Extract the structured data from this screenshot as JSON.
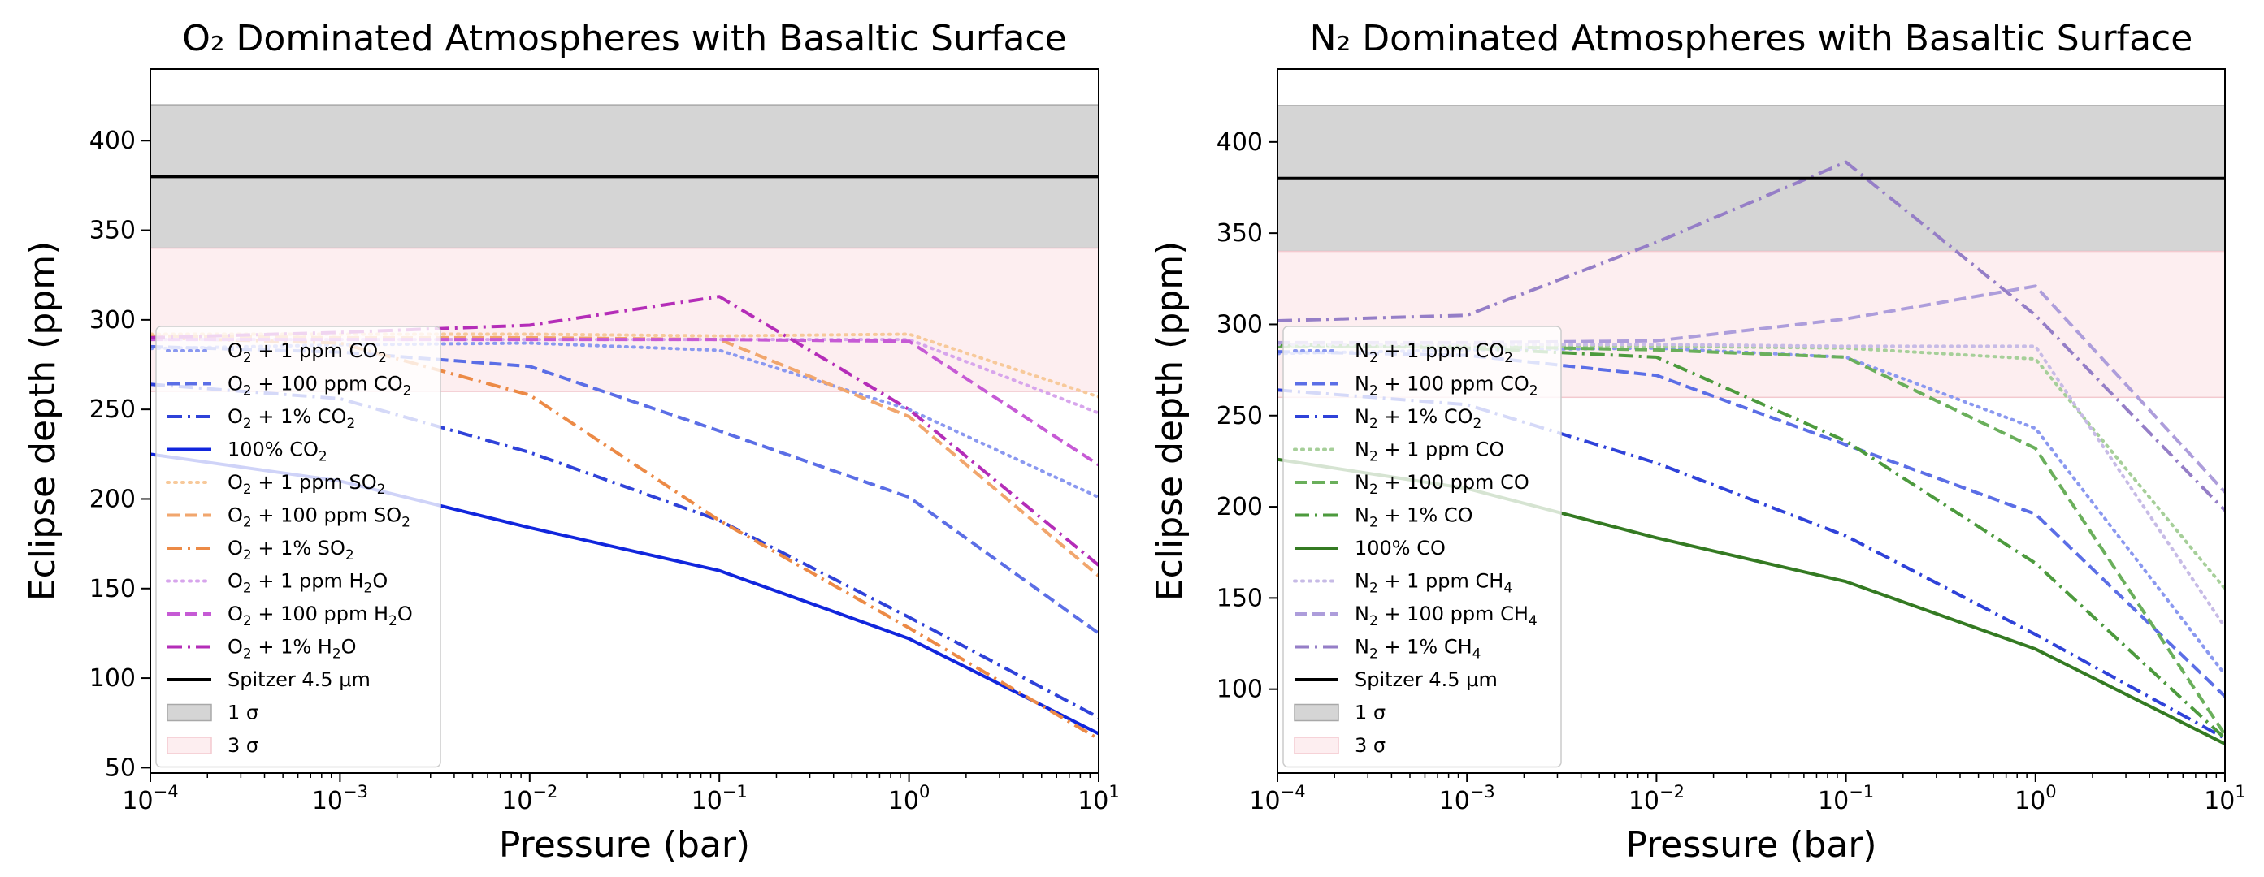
{
  "chart_data": [
    {
      "type": "line",
      "title": "O₂ Dominated Atmospheres with Basaltic Surface",
      "xlabel": "Pressure (bar)",
      "ylabel": "Eclipse depth (ppm)",
      "xscale": "log",
      "xlim": [
        0.0001,
        10
      ],
      "ylim": [
        47,
        440
      ],
      "xticks": [
        {
          "base": "10",
          "exp": "−4",
          "value": 0.0001
        },
        {
          "base": "10",
          "exp": "−3",
          "value": 0.001
        },
        {
          "base": "10",
          "exp": "−2",
          "value": 0.01
        },
        {
          "base": "10",
          "exp": "−1",
          "value": 0.1
        },
        {
          "base": "10",
          "exp": "0",
          "value": 1
        },
        {
          "base": "10",
          "exp": "1",
          "value": 10
        }
      ],
      "yticks": [
        "50",
        "100",
        "150",
        "200",
        "250",
        "300",
        "350",
        "400"
      ],
      "legend_position": "lower-left",
      "x": [
        0.0001,
        0.001,
        0.01,
        0.1,
        1,
        10
      ],
      "spitzer": {
        "value": 380,
        "label": "Spitzer 4.5 μm",
        "color": "#000000"
      },
      "bands": [
        {
          "name": "1 σ",
          "range": [
            340,
            420
          ],
          "color": "#d5d5d5",
          "edge": "#a8a8a8"
        },
        {
          "name": "3 σ",
          "range": [
            260,
            340
          ],
          "color": "#fdeef0",
          "edge": "#f3c9cf"
        }
      ],
      "series": [
        {
          "name": "O₂ + 1 ppm CO₂",
          "main": "O",
          "sub": "2",
          "rest": " + 1 ppm CO",
          "sub2": "2",
          "color": "#8a98f0",
          "dash": "dot",
          "values": [
            284,
            286,
            287,
            283,
            250,
            201
          ]
        },
        {
          "name": "O₂ + 100 ppm CO₂",
          "main": "O",
          "sub": "2",
          "rest": " + 100 ppm CO",
          "sub2": "2",
          "color": "#5b6ee6",
          "dash": "dash",
          "values": [
            285,
            282,
            274,
            238,
            201,
            125
          ]
        },
        {
          "name": "O₂ + 1% CO₂",
          "main": "O",
          "sub": "2",
          "rest": " + 1% CO",
          "sub2": "2",
          "color": "#2f42d9",
          "dash": "dashdot",
          "values": [
            264,
            256,
            226,
            188,
            134,
            78
          ]
        },
        {
          "name": "100% CO₂",
          "main": "100% CO",
          "sub": "2",
          "rest": "",
          "sub2": "",
          "color": "#1126dd",
          "dash": "solid",
          "values": [
            225,
            210,
            184,
            160,
            122,
            69
          ]
        },
        {
          "name": "O₂ + 1 ppm SO₂",
          "main": "O",
          "sub": "2",
          "rest": " + 1 ppm SO",
          "sub2": "2",
          "color": "#f7c99a",
          "dash": "dot",
          "values": [
            292,
            292,
            292,
            291,
            292,
            257
          ]
        },
        {
          "name": "O₂ + 100 ppm SO₂",
          "main": "O",
          "sub": "2",
          "rest": " + 100 ppm SO",
          "sub2": "2",
          "color": "#f1a66d",
          "dash": "dash",
          "values": [
            291,
            290,
            290,
            289,
            246,
            157
          ]
        },
        {
          "name": "O₂ + 1% SO₂",
          "main": "O",
          "sub": "2",
          "rest": " + 1% SO",
          "sub2": "2",
          "color": "#ec8a46",
          "dash": "dashdot",
          "values": [
            290,
            287,
            258,
            188,
            128,
            66
          ]
        },
        {
          "name": "O₂ + 1 ppm H₂O",
          "main": "O",
          "sub": "2",
          "rest": " + 1 ppm H",
          "sub2": "2",
          "tail": "O",
          "color": "#d7a5ec",
          "dash": "dot",
          "values": [
            289,
            289,
            289,
            289,
            289,
            248
          ]
        },
        {
          "name": "O₂ + 100 ppm H₂O",
          "main": "O",
          "sub": "2",
          "rest": " + 100 ppm H",
          "sub2": "2",
          "tail": "O",
          "color": "#c65ad5",
          "dash": "dash",
          "values": [
            289,
            289,
            289,
            289,
            288,
            219
          ]
        },
        {
          "name": "O₂ + 1% H₂O",
          "main": "O",
          "sub": "2",
          "rest": " + 1% H",
          "sub2": "2",
          "tail": "O",
          "color": "#b42db8",
          "dash": "dashdot",
          "values": [
            290,
            293,
            297,
            313,
            250,
            163
          ]
        }
      ]
    },
    {
      "type": "line",
      "title": "N₂ Dominated Atmospheres with Basaltic Surface",
      "xlabel": "Pressure (bar)",
      "ylabel": "Eclipse depth (ppm)",
      "xscale": "log",
      "xlim": [
        0.0001,
        10
      ],
      "ylim": [
        54,
        440
      ],
      "xticks": [
        {
          "base": "10",
          "exp": "−4",
          "value": 0.0001
        },
        {
          "base": "10",
          "exp": "−3",
          "value": 0.001
        },
        {
          "base": "10",
          "exp": "−2",
          "value": 0.01
        },
        {
          "base": "10",
          "exp": "−1",
          "value": 0.1
        },
        {
          "base": "10",
          "exp": "0",
          "value": 1
        },
        {
          "base": "10",
          "exp": "1",
          "value": 10
        }
      ],
      "yticks": [
        "100",
        "150",
        "200",
        "250",
        "300",
        "350",
        "400"
      ],
      "legend_position": "lower-left",
      "x": [
        0.0001,
        0.001,
        0.01,
        0.1,
        1,
        10
      ],
      "spitzer": {
        "value": 380,
        "label": "Spitzer 4.5 μm",
        "color": "#000000"
      },
      "bands": [
        {
          "name": "1 σ",
          "range": [
            340,
            420
          ],
          "color": "#d5d5d5",
          "edge": "#a8a8a8"
        },
        {
          "name": "3 σ",
          "range": [
            260,
            340
          ],
          "color": "#fdeef0",
          "edge": "#f3c9cf"
        }
      ],
      "series": [
        {
          "name": "N₂ + 1 ppm CO₂",
          "main": "N",
          "sub": "2",
          "rest": " + 1 ppm CO",
          "sub2": "2",
          "color": "#8a98f0",
          "dash": "dot",
          "values": [
            284,
            286,
            287,
            282,
            243,
            108
          ]
        },
        {
          "name": "N₂ + 100 ppm CO₂",
          "main": "N",
          "sub": "2",
          "rest": " + 100 ppm CO",
          "sub2": "2",
          "color": "#5b6ee6",
          "dash": "dash",
          "values": [
            285,
            283,
            272,
            234,
            196,
            96
          ]
        },
        {
          "name": "N₂ + 1% CO₂",
          "main": "N",
          "sub": "2",
          "rest": " + 1% CO",
          "sub2": "2",
          "color": "#2f42d9",
          "dash": "dashdot",
          "values": [
            264,
            256,
            224,
            184,
            130,
            73
          ]
        },
        {
          "name": "N₂ + 1 ppm CO",
          "main": "N",
          "sub": "2",
          "rest": " + 1 ppm CO",
          "sub2": "",
          "color": "#a6cf99",
          "dash": "dot",
          "values": [
            288,
            288,
            288,
            287,
            281,
            155
          ]
        },
        {
          "name": "N₂ + 100 ppm CO",
          "main": "N",
          "sub": "2",
          "rest": " + 100 ppm CO",
          "sub2": "",
          "color": "#6aaf5b",
          "dash": "dash",
          "values": [
            288,
            288,
            286,
            282,
            232,
            75
          ]
        },
        {
          "name": "N₂ + 1% CO",
          "main": "N",
          "sub": "2",
          "rest": " + 1% CO",
          "sub2": "",
          "color": "#4c9a3d",
          "dash": "dashdot",
          "values": [
            289,
            287,
            282,
            236,
            169,
            73
          ]
        },
        {
          "name": "100% CO",
          "main": "100% CO",
          "sub": "",
          "rest": "",
          "sub2": "",
          "color": "#347a22",
          "dash": "solid",
          "values": [
            226,
            210,
            183,
            159,
            122,
            70
          ]
        },
        {
          "name": "N₂ + 1 ppm CH₄",
          "main": "N",
          "sub": "2",
          "rest": " + 1 ppm CH",
          "sub2": "4",
          "color": "#c7bbe6",
          "dash": "dot",
          "values": [
            289,
            289,
            289,
            288,
            288,
            134
          ]
        },
        {
          "name": "N₂ + 100 ppm CH₄",
          "main": "N",
          "sub": "2",
          "rest": " + 100 ppm CH",
          "sub2": "4",
          "color": "#ad9ddb",
          "dash": "dash",
          "values": [
            290,
            290,
            291,
            303,
            321,
            208
          ]
        },
        {
          "name": "N₂ + 1% CH₄",
          "main": "N",
          "sub": "2",
          "rest": " + 1% CH",
          "sub2": "4",
          "color": "#957ec7",
          "dash": "dashdot",
          "values": [
            302,
            305,
            345,
            389,
            305,
            198
          ]
        }
      ]
    }
  ]
}
